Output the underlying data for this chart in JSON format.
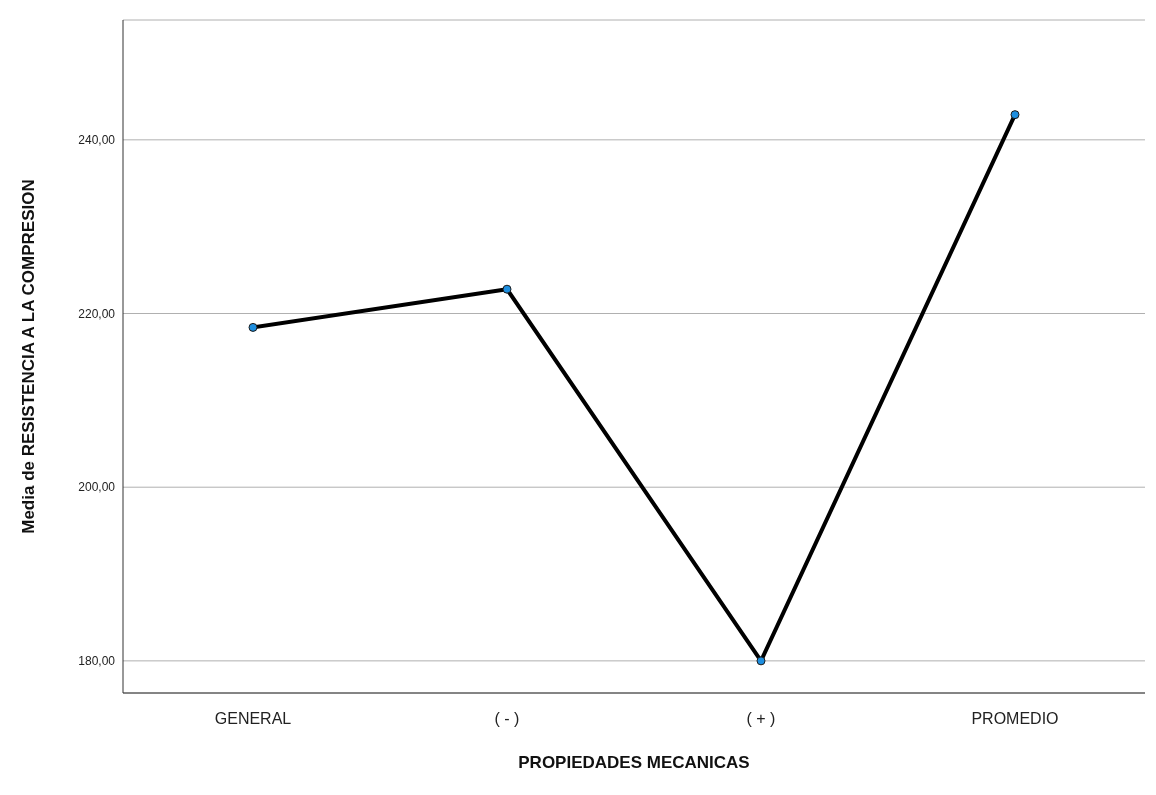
{
  "chart_data": {
    "type": "line",
    "xlabel": "PROPIEDADES MECANICAS",
    "ylabel": "Media de RESISTENCIA A LA COMPRESION",
    "categories": [
      "GENERAL",
      "( - )",
      "( + )",
      "PROMEDIO"
    ],
    "series": [
      {
        "color": "#000000",
        "colors": [
          "#1e8fe0",
          "#1e8fe0",
          "#1e8fe0",
          "#1e8fe0"
        ],
        "values": [
          218.4,
          222.8,
          180.0,
          242.9
        ]
      }
    ],
    "ylim": [
      176.3,
      253.8
    ],
    "yticks": [
      {
        "value": 180,
        "label": "180,00"
      },
      {
        "value": 200,
        "label": "200,00"
      },
      {
        "value": 220,
        "label": "220,00"
      },
      {
        "value": 240,
        "label": "240,00"
      }
    ],
    "grid": "y",
    "marker": "circle",
    "line_style": "solid"
  }
}
